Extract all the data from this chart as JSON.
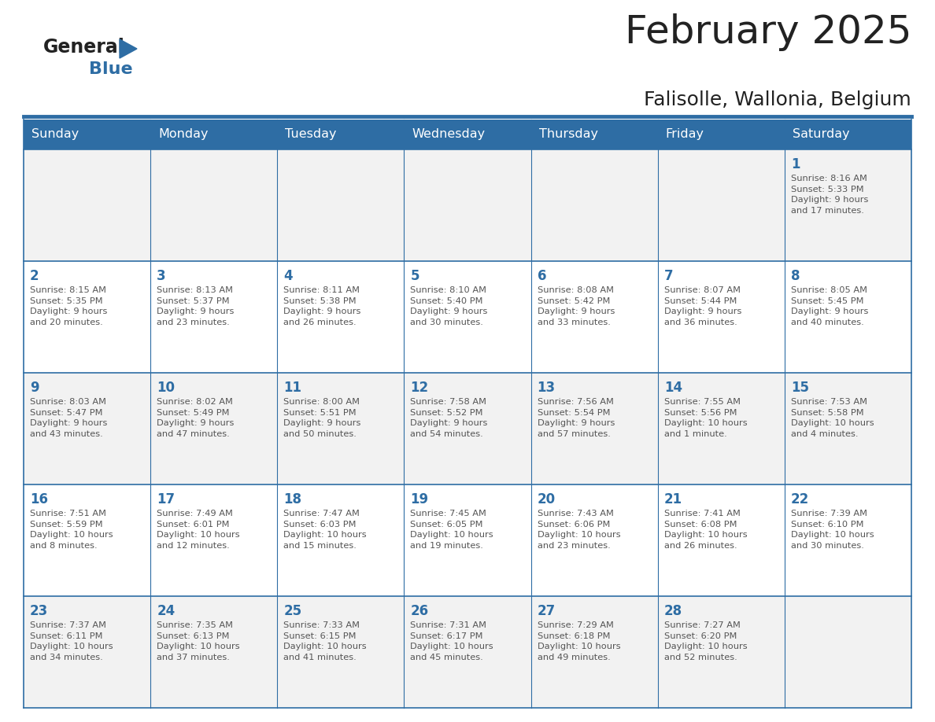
{
  "title": "February 2025",
  "subtitle": "Falisolle, Wallonia, Belgium",
  "days_of_week": [
    "Sunday",
    "Monday",
    "Tuesday",
    "Wednesday",
    "Thursday",
    "Friday",
    "Saturday"
  ],
  "header_bg_color": "#2E6DA4",
  "header_text_color": "#FFFFFF",
  "cell_bg_color_even": "#F2F2F2",
  "cell_bg_color_odd": "#FFFFFF",
  "border_color": "#2E6DA4",
  "day_number_color": "#2E6DA4",
  "text_color": "#555555",
  "title_color": "#222222",
  "logo_general_color": "#222222",
  "logo_blue_color": "#2E6DA4",
  "weeks": [
    [
      {
        "day": null,
        "info": null
      },
      {
        "day": null,
        "info": null
      },
      {
        "day": null,
        "info": null
      },
      {
        "day": null,
        "info": null
      },
      {
        "day": null,
        "info": null
      },
      {
        "day": null,
        "info": null
      },
      {
        "day": 1,
        "info": "Sunrise: 8:16 AM\nSunset: 5:33 PM\nDaylight: 9 hours\nand 17 minutes."
      }
    ],
    [
      {
        "day": 2,
        "info": "Sunrise: 8:15 AM\nSunset: 5:35 PM\nDaylight: 9 hours\nand 20 minutes."
      },
      {
        "day": 3,
        "info": "Sunrise: 8:13 AM\nSunset: 5:37 PM\nDaylight: 9 hours\nand 23 minutes."
      },
      {
        "day": 4,
        "info": "Sunrise: 8:11 AM\nSunset: 5:38 PM\nDaylight: 9 hours\nand 26 minutes."
      },
      {
        "day": 5,
        "info": "Sunrise: 8:10 AM\nSunset: 5:40 PM\nDaylight: 9 hours\nand 30 minutes."
      },
      {
        "day": 6,
        "info": "Sunrise: 8:08 AM\nSunset: 5:42 PM\nDaylight: 9 hours\nand 33 minutes."
      },
      {
        "day": 7,
        "info": "Sunrise: 8:07 AM\nSunset: 5:44 PM\nDaylight: 9 hours\nand 36 minutes."
      },
      {
        "day": 8,
        "info": "Sunrise: 8:05 AM\nSunset: 5:45 PM\nDaylight: 9 hours\nand 40 minutes."
      }
    ],
    [
      {
        "day": 9,
        "info": "Sunrise: 8:03 AM\nSunset: 5:47 PM\nDaylight: 9 hours\nand 43 minutes."
      },
      {
        "day": 10,
        "info": "Sunrise: 8:02 AM\nSunset: 5:49 PM\nDaylight: 9 hours\nand 47 minutes."
      },
      {
        "day": 11,
        "info": "Sunrise: 8:00 AM\nSunset: 5:51 PM\nDaylight: 9 hours\nand 50 minutes."
      },
      {
        "day": 12,
        "info": "Sunrise: 7:58 AM\nSunset: 5:52 PM\nDaylight: 9 hours\nand 54 minutes."
      },
      {
        "day": 13,
        "info": "Sunrise: 7:56 AM\nSunset: 5:54 PM\nDaylight: 9 hours\nand 57 minutes."
      },
      {
        "day": 14,
        "info": "Sunrise: 7:55 AM\nSunset: 5:56 PM\nDaylight: 10 hours\nand 1 minute."
      },
      {
        "day": 15,
        "info": "Sunrise: 7:53 AM\nSunset: 5:58 PM\nDaylight: 10 hours\nand 4 minutes."
      }
    ],
    [
      {
        "day": 16,
        "info": "Sunrise: 7:51 AM\nSunset: 5:59 PM\nDaylight: 10 hours\nand 8 minutes."
      },
      {
        "day": 17,
        "info": "Sunrise: 7:49 AM\nSunset: 6:01 PM\nDaylight: 10 hours\nand 12 minutes."
      },
      {
        "day": 18,
        "info": "Sunrise: 7:47 AM\nSunset: 6:03 PM\nDaylight: 10 hours\nand 15 minutes."
      },
      {
        "day": 19,
        "info": "Sunrise: 7:45 AM\nSunset: 6:05 PM\nDaylight: 10 hours\nand 19 minutes."
      },
      {
        "day": 20,
        "info": "Sunrise: 7:43 AM\nSunset: 6:06 PM\nDaylight: 10 hours\nand 23 minutes."
      },
      {
        "day": 21,
        "info": "Sunrise: 7:41 AM\nSunset: 6:08 PM\nDaylight: 10 hours\nand 26 minutes."
      },
      {
        "day": 22,
        "info": "Sunrise: 7:39 AM\nSunset: 6:10 PM\nDaylight: 10 hours\nand 30 minutes."
      }
    ],
    [
      {
        "day": 23,
        "info": "Sunrise: 7:37 AM\nSunset: 6:11 PM\nDaylight: 10 hours\nand 34 minutes."
      },
      {
        "day": 24,
        "info": "Sunrise: 7:35 AM\nSunset: 6:13 PM\nDaylight: 10 hours\nand 37 minutes."
      },
      {
        "day": 25,
        "info": "Sunrise: 7:33 AM\nSunset: 6:15 PM\nDaylight: 10 hours\nand 41 minutes."
      },
      {
        "day": 26,
        "info": "Sunrise: 7:31 AM\nSunset: 6:17 PM\nDaylight: 10 hours\nand 45 minutes."
      },
      {
        "day": 27,
        "info": "Sunrise: 7:29 AM\nSunset: 6:18 PM\nDaylight: 10 hours\nand 49 minutes."
      },
      {
        "day": 28,
        "info": "Sunrise: 7:27 AM\nSunset: 6:20 PM\nDaylight: 10 hours\nand 52 minutes."
      },
      {
        "day": null,
        "info": null
      }
    ]
  ]
}
